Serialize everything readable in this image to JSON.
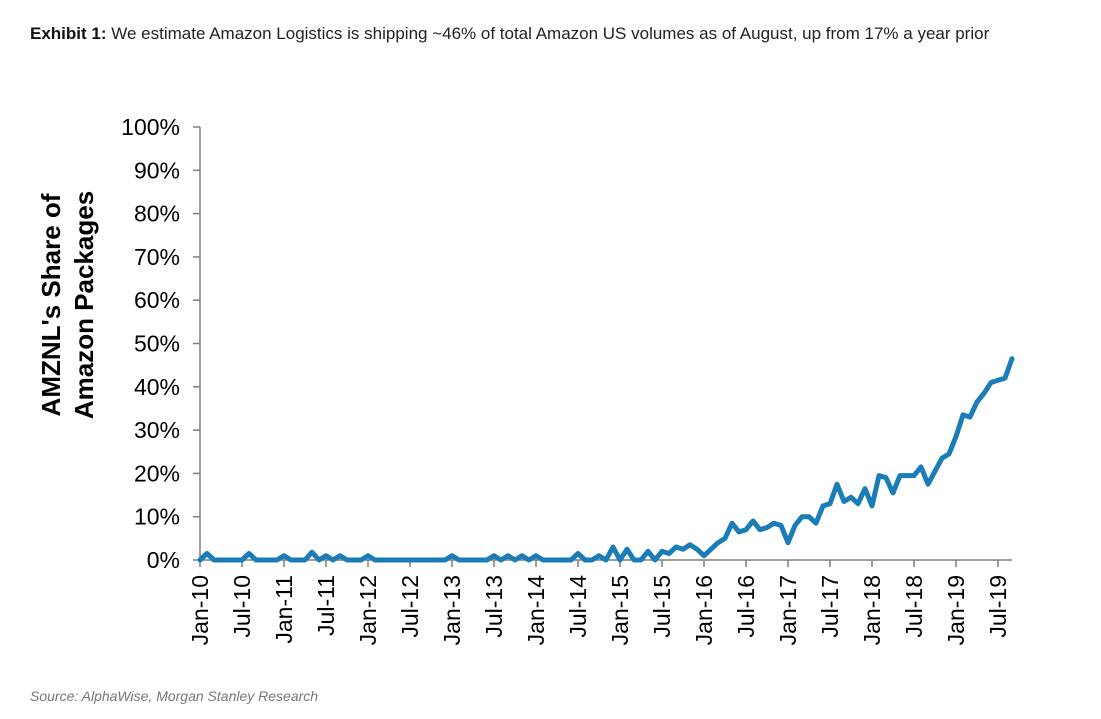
{
  "header": {
    "exhibit_label": "Exhibit 1:",
    "title_text": "We estimate Amazon Logistics is shipping ~46% of total Amazon US volumes as of August, up from 17% a year prior"
  },
  "footer": {
    "source": "Source: AlphaWise, Morgan Stanley Research"
  },
  "colors": {
    "line": "#1a7db8",
    "axis": "#7f7f7f"
  },
  "chart_data": {
    "type": "line",
    "title": "We estimate Amazon Logistics is shipping ~46% of total Amazon US volumes as of August, up from 17% a year prior",
    "ylabel_lines": [
      "AMZNL's Share of",
      "Amazon Packages"
    ],
    "xlabel": "",
    "ylim": [
      0,
      100
    ],
    "y_ticks": [
      0,
      10,
      20,
      30,
      40,
      50,
      60,
      70,
      80,
      90,
      100
    ],
    "y_tick_labels": [
      "0%",
      "10%",
      "20%",
      "30%",
      "40%",
      "50%",
      "60%",
      "70%",
      "80%",
      "90%",
      "100%"
    ],
    "x_tick_labels": [
      "Jan-10",
      "Jul-10",
      "Jan-11",
      "Jul-11",
      "Jan-12",
      "Jul-12",
      "Jan-13",
      "Jul-13",
      "Jan-14",
      "Jul-14",
      "Jan-15",
      "Jul-15",
      "Jan-16",
      "Jul-16",
      "Jan-17",
      "Jul-17",
      "Jan-18",
      "Jul-18",
      "Jan-19",
      "Jul-19"
    ],
    "x_tick_months": [
      0,
      6,
      12,
      18,
      24,
      30,
      36,
      42,
      48,
      54,
      60,
      66,
      72,
      78,
      84,
      90,
      96,
      102,
      108,
      114
    ],
    "x_range_months": [
      0,
      116
    ],
    "series": [
      {
        "name": "AMZNL share of Amazon packages",
        "start": "Jan-10",
        "values": [
          0,
          1.5,
          0,
          0,
          0,
          0,
          0,
          1.5,
          0,
          0,
          0,
          0,
          1,
          0,
          0,
          0,
          1.8,
          0,
          1,
          0,
          1,
          0,
          0,
          0,
          1,
          0,
          0,
          0,
          0,
          0,
          0,
          0,
          0,
          0,
          0,
          0,
          1,
          0,
          0,
          0,
          0,
          0,
          1,
          0,
          1,
          0,
          1,
          0,
          1,
          0,
          0,
          0,
          0,
          0,
          1.5,
          0,
          0,
          1,
          0,
          3,
          0,
          2.5,
          0,
          0,
          2,
          0,
          2,
          1.5,
          3,
          2.5,
          3.5,
          2.5,
          1,
          2.5,
          4,
          5,
          8.5,
          6.5,
          7,
          9,
          7,
          7.5,
          8.5,
          8,
          4,
          8,
          10,
          10,
          8.5,
          12.5,
          13,
          17.5,
          13.5,
          14.5,
          13,
          16.5,
          12.5,
          19.5,
          19,
          15.5,
          19.5,
          19.5,
          19.5,
          21.5,
          17.5,
          20.5,
          23.5,
          24.5,
          28.5,
          33.5,
          33,
          36.5,
          38.5,
          41,
          41.5,
          42,
          46.5
        ]
      }
    ]
  }
}
